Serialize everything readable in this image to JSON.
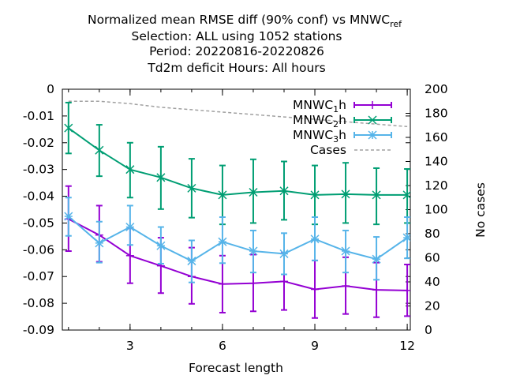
{
  "chart_data": {
    "type": "line",
    "title_lines": [
      "Normalized mean RMSE diff (90% conf) vs MNWC_ref",
      "Selection: ALL using  1052 stations",
      "Period: 20220816-20220826",
      "Td2m deficit   Hours:  All hours"
    ],
    "title_sub_line0": "ref",
    "xlabel": "Forecast length",
    "ylabel": "",
    "y2label": "No cases",
    "xlim": [
      0.8,
      12.1
    ],
    "ylim": [
      -0.09,
      0
    ],
    "y2lim": [
      0,
      200
    ],
    "xticks": [
      "3",
      "6",
      "9",
      "12"
    ],
    "yticks": [
      "0",
      "-0.01",
      "-0.02",
      "-0.03",
      "-0.04",
      "-0.05",
      "-0.06",
      "-0.07",
      "-0.08",
      "-0.09"
    ],
    "y2ticks": [
      "200",
      "180",
      "160",
      "140",
      "120",
      "100",
      "80",
      "60",
      "40",
      "20",
      "0"
    ],
    "legend_position": "top-right",
    "x": [
      1,
      2,
      3,
      4,
      5,
      6,
      7,
      8,
      9,
      10,
      11,
      12
    ],
    "series": [
      {
        "name": "MNWC_1h",
        "color": "#9400d3",
        "marker": "plus",
        "values": [
          -0.0485,
          -0.0545,
          -0.0622,
          -0.066,
          -0.07,
          -0.0728,
          -0.0725,
          -0.0718,
          -0.0748,
          -0.0735,
          -0.075,
          -0.0752
        ],
        "low": [
          -0.0605,
          -0.0645,
          -0.0725,
          -0.0762,
          -0.0802,
          -0.0835,
          -0.083,
          -0.0825,
          -0.0855,
          -0.084,
          -0.0852,
          -0.0848
        ],
        "high": [
          -0.0362,
          -0.0435,
          -0.052,
          -0.0555,
          -0.0592,
          -0.0622,
          -0.0618,
          -0.0612,
          -0.064,
          -0.0628,
          -0.0648,
          -0.0655
        ]
      },
      {
        "name": "MNWC_2h",
        "color": "#009e73",
        "marker": "cross",
        "values": [
          -0.0145,
          -0.0228,
          -0.03,
          -0.033,
          -0.037,
          -0.0395,
          -0.0385,
          -0.038,
          -0.0395,
          -0.0392,
          -0.0395,
          -0.0395
        ],
        "low": [
          -0.024,
          -0.0325,
          -0.0405,
          -0.0448,
          -0.048,
          -0.0505,
          -0.05,
          -0.0488,
          -0.0505,
          -0.05,
          -0.0505,
          -0.05
        ],
        "high": [
          -0.005,
          -0.0133,
          -0.02,
          -0.0215,
          -0.026,
          -0.0285,
          -0.0262,
          -0.027,
          -0.0285,
          -0.0275,
          -0.0295,
          -0.0298
        ]
      },
      {
        "name": "MNWC_3h",
        "color": "#56b4e9",
        "marker": "star",
        "values": [
          -0.0475,
          -0.0575,
          -0.0515,
          -0.0585,
          -0.0642,
          -0.057,
          -0.0605,
          -0.0615,
          -0.056,
          -0.0605,
          -0.0635,
          -0.0555
        ],
        "low": [
          -0.0548,
          -0.0648,
          -0.0582,
          -0.0652,
          -0.0722,
          -0.065,
          -0.0685,
          -0.0692,
          -0.064,
          -0.0685,
          -0.0712,
          -0.0632
        ],
        "high": [
          -0.0405,
          -0.0495,
          -0.0435,
          -0.0515,
          -0.0565,
          -0.0478,
          -0.0528,
          -0.0538,
          -0.0478,
          -0.0528,
          -0.0552,
          -0.0478
        ]
      }
    ],
    "cases": {
      "name": "Cases",
      "color": "#a0a0a0",
      "values": [
        190,
        190,
        188,
        185,
        183,
        181,
        179,
        177,
        175,
        173,
        171,
        169
      ]
    }
  }
}
